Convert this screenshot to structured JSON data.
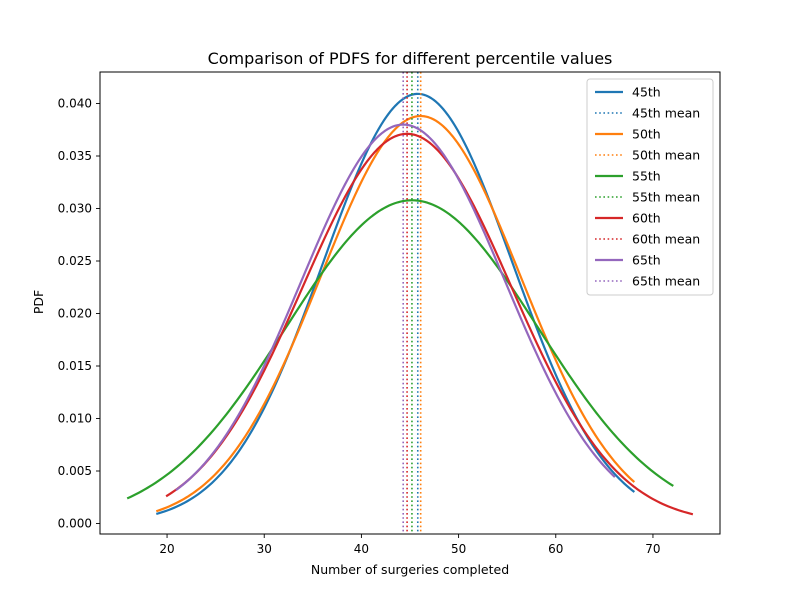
{
  "chart_data": {
    "type": "line",
    "title": "Comparison of PDFS for different percentile values",
    "xlabel": "Number of surgeries completed",
    "ylabel": "PDF",
    "xlim": [
      13.1,
      76.9
    ],
    "ylim": [
      -0.001,
      0.043
    ],
    "xticks": [
      20,
      30,
      40,
      50,
      60,
      70
    ],
    "yticks": [
      0.0,
      0.005,
      0.01,
      0.015,
      0.02,
      0.025,
      0.03,
      0.035,
      0.04
    ],
    "ytick_labels": [
      "0.000",
      "0.005",
      "0.010",
      "0.015",
      "0.020",
      "0.025",
      "0.030",
      "0.035",
      "0.040"
    ],
    "grid": false,
    "legend_position": "upper right",
    "series": [
      {
        "name": "45th",
        "mean_name": "45th mean",
        "color": "#1f77b4",
        "mean": 45.8,
        "sd": 9.75,
        "x_range": [
          19,
          68
        ]
      },
      {
        "name": "50th",
        "mean_name": "50th mean",
        "color": "#ff7f0e",
        "mean": 46.1,
        "sd": 10.28,
        "x_range": [
          19,
          68
        ]
      },
      {
        "name": "55th",
        "mean_name": "55th mean",
        "color": "#2ca02c",
        "mean": 45.2,
        "sd": 12.96,
        "x_range": [
          16,
          72
        ]
      },
      {
        "name": "60th",
        "mean_name": "60th mean",
        "color": "#d62728",
        "mean": 44.7,
        "sd": 10.75,
        "x_range": [
          20,
          74
        ]
      },
      {
        "name": "65th",
        "mean_name": "65th mean",
        "color": "#9467bd",
        "mean": 44.3,
        "sd": 10.5,
        "x_range": [
          21,
          66
        ]
      }
    ]
  }
}
